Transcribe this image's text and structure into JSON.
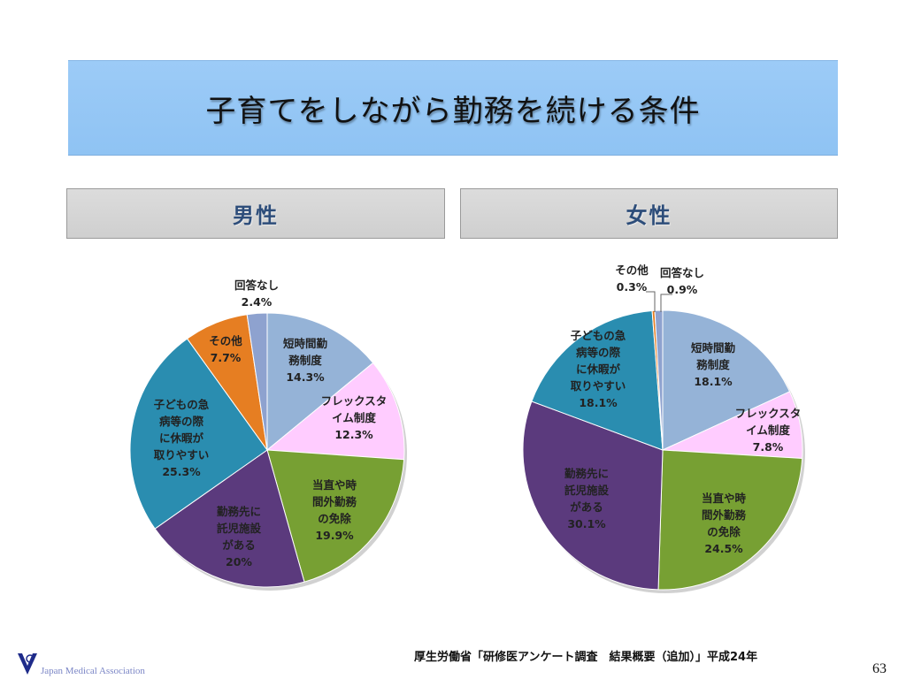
{
  "title": "子育てをしながら勤務を続ける条件",
  "panels": {
    "male": "男性",
    "female": "女性"
  },
  "chart_data": [
    {
      "type": "pie",
      "title": "男性",
      "slices": [
        {
          "label": "短時間勤務制度",
          "lines": [
            "短時間勤",
            "務制度"
          ],
          "value": 14.3,
          "value_label": "14.3%",
          "color": "#95b3d7"
        },
        {
          "label": "フレックスタイム制度",
          "lines": [
            "フレックスタ",
            "イム制度"
          ],
          "value": 12.3,
          "value_label": "12.3%",
          "color": "#ffccff"
        },
        {
          "label": "当直や時間外勤務の免除",
          "lines": [
            "当直や時",
            "間外勤務",
            "の免除"
          ],
          "value": 19.9,
          "value_label": "19.9%",
          "color": "#77a033"
        },
        {
          "label": "勤務先に託児施設がある",
          "lines": [
            "勤務先に",
            "託児施設",
            "がある"
          ],
          "value": 20,
          "value_label": "20%",
          "color": "#5b3a7d"
        },
        {
          "label": "子どもの急病等の際に休暇が取りやすい",
          "lines": [
            "子どもの急",
            "病等の際",
            "に休暇が",
            "取りやすい"
          ],
          "value": 25.3,
          "value_label": "25.3%",
          "color": "#2a8db0"
        },
        {
          "label": "その他",
          "lines": [
            "その他"
          ],
          "value": 7.7,
          "value_label": "7.7%",
          "color": "#e67e22"
        },
        {
          "label": "回答なし",
          "lines": [
            "回答なし"
          ],
          "value": 2.4,
          "value_label": "2.4%",
          "color": "#8ea2cf"
        }
      ]
    },
    {
      "type": "pie",
      "title": "女性",
      "slices": [
        {
          "label": "短時間勤務制度",
          "lines": [
            "短時間勤",
            "務制度"
          ],
          "value": 18.1,
          "value_label": "18.1%",
          "color": "#95b3d7"
        },
        {
          "label": "フレックスタイム制度",
          "lines": [
            "フレックスタ",
            "イム制度"
          ],
          "value": 7.8,
          "value_label": "7.8%",
          "color": "#ffccff"
        },
        {
          "label": "当直や時間外勤務の免除",
          "lines": [
            "当直や時",
            "間外勤務",
            "の免除"
          ],
          "value": 24.5,
          "value_label": "24.5%",
          "color": "#77a033"
        },
        {
          "label": "勤務先に託児施設がある",
          "lines": [
            "勤務先に",
            "託児施設",
            "がある"
          ],
          "value": 30.1,
          "value_label": "30.1%",
          "color": "#5b3a7d"
        },
        {
          "label": "子どもの急病等の際に休暇が取りやすい",
          "lines": [
            "子どもの急",
            "病等の際",
            "に休暇が",
            "取りやすい"
          ],
          "value": 18.1,
          "value_label": "18.1%",
          "color": "#2a8db0"
        },
        {
          "label": "その他",
          "lines": [
            "その他"
          ],
          "value": 0.3,
          "value_label": "0.3%",
          "color": "#e67e22"
        },
        {
          "label": "回答なし",
          "lines": [
            "回答なし"
          ],
          "value": 0.9,
          "value_label": "0.9%",
          "color": "#8ea2cf"
        }
      ]
    }
  ],
  "footer": {
    "source": "厚生労働省「研修医アンケート調査　結果概要（追加）」平成24年",
    "page": "63",
    "org": "Japan Medical Association",
    "logo_icon": "jma-logo-icon"
  }
}
